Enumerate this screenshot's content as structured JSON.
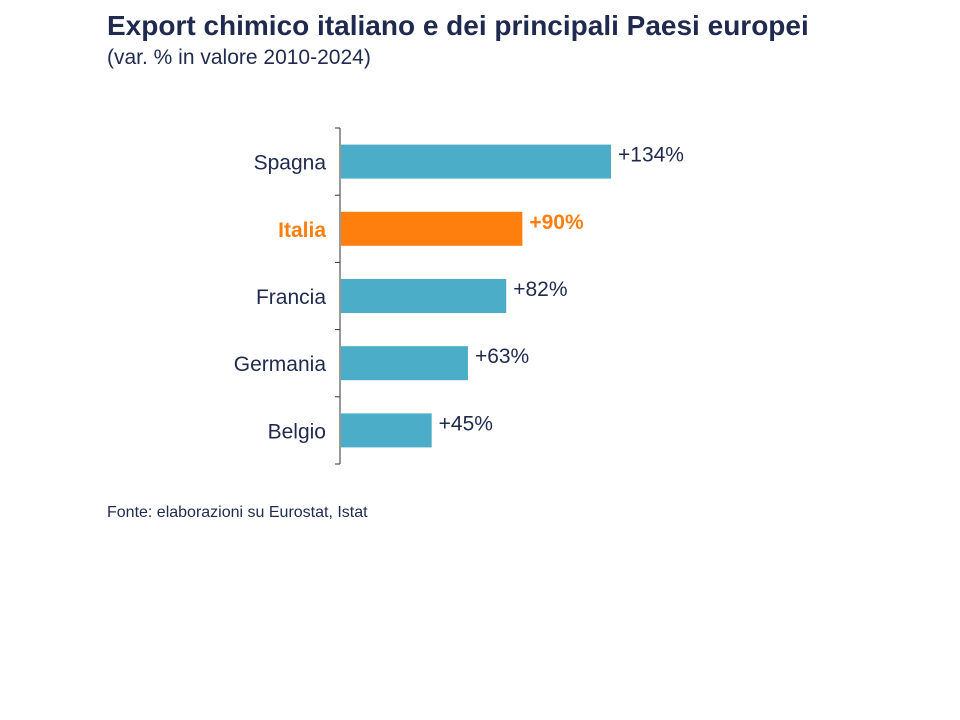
{
  "header": {
    "title": "Export chimico italiano e dei principali Paesi europei",
    "subtitle": "(var. % in valore 2010-2024)"
  },
  "footer": {
    "source": "Fonte: elaborazioni su Eurostat, Istat"
  },
  "colors": {
    "default_bar": "#4badc8",
    "highlight_bar": "#ff7f0e",
    "text": "#1f2a4e",
    "axis": "#333333"
  },
  "chart_data": {
    "type": "bar",
    "orientation": "horizontal",
    "title": "Export chimico italiano e dei principali Paesi europei",
    "subtitle": "(var. % in valore 2010-2024)",
    "xlabel": "",
    "ylabel": "",
    "unit": "%",
    "xlim": [
      0,
      134
    ],
    "grid": false,
    "categories": [
      "Spagna",
      "Italia",
      "Francia",
      "Germania",
      "Belgio"
    ],
    "values": [
      134,
      90,
      82,
      63,
      45
    ],
    "labels": [
      "+134%",
      "+90%",
      "+82%",
      "+63%",
      "+45%"
    ],
    "highlight": "Italia"
  }
}
